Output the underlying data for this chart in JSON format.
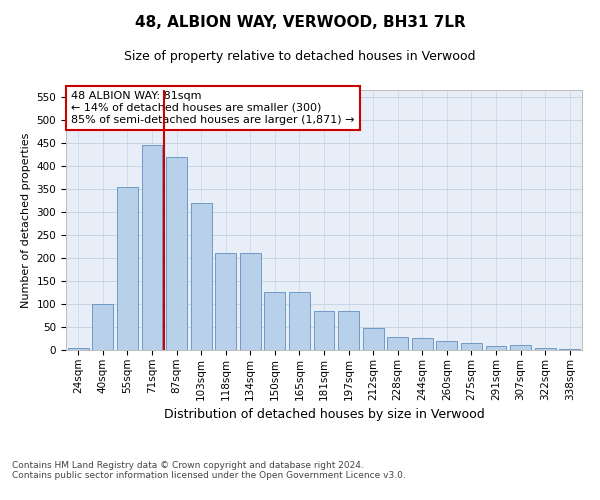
{
  "title": "48, ALBION WAY, VERWOOD, BH31 7LR",
  "subtitle": "Size of property relative to detached houses in Verwood",
  "xlabel": "Distribution of detached houses by size in Verwood",
  "ylabel": "Number of detached properties",
  "bar_labels": [
    "24sqm",
    "40sqm",
    "55sqm",
    "71sqm",
    "87sqm",
    "103sqm",
    "118sqm",
    "134sqm",
    "150sqm",
    "165sqm",
    "181sqm",
    "197sqm",
    "212sqm",
    "228sqm",
    "244sqm",
    "260sqm",
    "275sqm",
    "291sqm",
    "307sqm",
    "322sqm",
    "338sqm"
  ],
  "bar_values": [
    5,
    100,
    355,
    445,
    420,
    320,
    210,
    210,
    127,
    127,
    85,
    85,
    48,
    28,
    25,
    20,
    15,
    8,
    10,
    5,
    3
  ],
  "bar_color": "#b8d0ea",
  "bar_edge_color": "#6090c0",
  "vline_color": "#cc0000",
  "vline_index": 3.5,
  "annotation_text": "48 ALBION WAY: 81sqm\n← 14% of detached houses are smaller (300)\n85% of semi-detached houses are larger (1,871) →",
  "annotation_box_facecolor": "#ffffff",
  "annotation_box_edgecolor": "#cc0000",
  "grid_color": "#c8d4e4",
  "plot_bg_color": "#e8eef8",
  "ylim": [
    0,
    565
  ],
  "yticks": [
    0,
    50,
    100,
    150,
    200,
    250,
    300,
    350,
    400,
    450,
    500,
    550
  ],
  "title_fontsize": 11,
  "subtitle_fontsize": 9,
  "xlabel_fontsize": 9,
  "ylabel_fontsize": 8,
  "tick_fontsize": 7.5,
  "annotation_fontsize": 8,
  "footer_fontsize": 6.5,
  "footer_text": "Contains HM Land Registry data © Crown copyright and database right 2024.\nContains public sector information licensed under the Open Government Licence v3.0."
}
